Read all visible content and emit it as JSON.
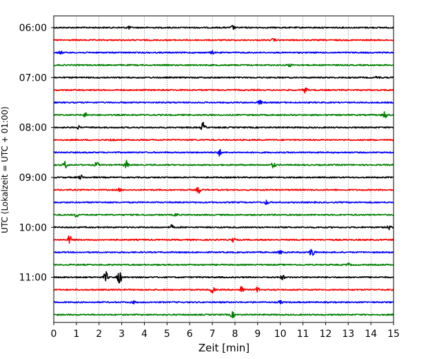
{
  "chart_data": {
    "type": "line",
    "title": "",
    "xlabel": "Zeit  [min]",
    "ylabel": "UTC (Lokalzeit = UTC + 01:00)",
    "xlim": [
      0,
      15
    ],
    "x_ticks": [
      "0",
      "1",
      "2",
      "3",
      "4",
      "5",
      "6",
      "7",
      "8",
      "9",
      "10",
      "11",
      "12",
      "13",
      "14",
      "15"
    ],
    "y_ticks": [
      "06:00",
      "07:00",
      "08:00",
      "09:00",
      "10:00",
      "11:00"
    ],
    "y_tick_rows": [
      0,
      4,
      8,
      12,
      16,
      20
    ],
    "grid_x": true,
    "trace_interval_minutes": 15,
    "colors_cycle": [
      "#000000",
      "#ff0000",
      "#0000ff",
      "#008000"
    ],
    "traces": [
      {
        "label": "06:00",
        "color": "#000000",
        "events": [
          {
            "t": 7.9,
            "amp": 3
          },
          {
            "t": 3.3,
            "amp": 2
          }
        ]
      },
      {
        "label": "06:15",
        "color": "#ff0000",
        "events": [
          {
            "t": 9.7,
            "amp": 2
          }
        ]
      },
      {
        "label": "06:30",
        "color": "#0000ff",
        "events": [
          {
            "t": 0.3,
            "amp": 2
          },
          {
            "t": 7.0,
            "amp": 2
          }
        ]
      },
      {
        "label": "06:45",
        "color": "#008000",
        "events": [
          {
            "t": 10.4,
            "amp": 2
          }
        ]
      },
      {
        "label": "07:00",
        "color": "#000000",
        "events": [
          {
            "t": 14.3,
            "amp": 2
          }
        ]
      },
      {
        "label": "07:15",
        "color": "#ff0000",
        "events": [
          {
            "t": 11.1,
            "amp": 4
          }
        ]
      },
      {
        "label": "07:30",
        "color": "#0000ff",
        "events": [
          {
            "t": 9.1,
            "amp": 3
          }
        ]
      },
      {
        "label": "07:45",
        "color": "#008000",
        "events": [
          {
            "t": 1.4,
            "amp": 3
          },
          {
            "t": 14.6,
            "amp": 6
          }
        ]
      },
      {
        "label": "08:00",
        "color": "#000000",
        "events": [
          {
            "t": 6.6,
            "amp": 7
          },
          {
            "t": 1.1,
            "amp": 2
          }
        ]
      },
      {
        "label": "08:15",
        "color": "#ff0000",
        "events": [
          {
            "t": 2.6,
            "amp": 2
          }
        ]
      },
      {
        "label": "08:30",
        "color": "#0000ff",
        "events": [
          {
            "t": 7.3,
            "amp": 5
          }
        ]
      },
      {
        "label": "08:45",
        "color": "#008000",
        "events": [
          {
            "t": 0.5,
            "amp": 5
          },
          {
            "t": 1.9,
            "amp": 4
          },
          {
            "t": 3.2,
            "amp": 6
          },
          {
            "t": 9.7,
            "amp": 4
          }
        ]
      },
      {
        "label": "09:00",
        "color": "#000000",
        "events": [
          {
            "t": 1.2,
            "amp": 3
          }
        ]
      },
      {
        "label": "09:15",
        "color": "#ff0000",
        "events": [
          {
            "t": 6.4,
            "amp": 5
          },
          {
            "t": 2.9,
            "amp": 2
          }
        ]
      },
      {
        "label": "09:30",
        "color": "#0000ff",
        "events": [
          {
            "t": 9.4,
            "amp": 3
          }
        ]
      },
      {
        "label": "09:45",
        "color": "#008000",
        "events": [
          {
            "t": 1.0,
            "amp": 3
          },
          {
            "t": 5.4,
            "amp": 2
          }
        ]
      },
      {
        "label": "10:00",
        "color": "#000000",
        "events": [
          {
            "t": 5.2,
            "amp": 3
          },
          {
            "t": 14.8,
            "amp": 3
          }
        ]
      },
      {
        "label": "10:15",
        "color": "#ff0000",
        "events": [
          {
            "t": 0.7,
            "amp": 6
          },
          {
            "t": 7.9,
            "amp": 4
          }
        ]
      },
      {
        "label": "10:30",
        "color": "#0000ff",
        "events": [
          {
            "t": 11.4,
            "amp": 9
          },
          {
            "t": 10.0,
            "amp": 2
          }
        ]
      },
      {
        "label": "10:45",
        "color": "#008000",
        "events": [
          {
            "t": 13.0,
            "amp": 2
          }
        ]
      },
      {
        "label": "11:00",
        "color": "#000000",
        "events": [
          {
            "t": 2.3,
            "amp": 8
          },
          {
            "t": 2.9,
            "amp": 10
          },
          {
            "t": 10.1,
            "amp": 3
          }
        ]
      },
      {
        "label": "11:15",
        "color": "#ff0000",
        "events": [
          {
            "t": 7.0,
            "amp": 5
          },
          {
            "t": 8.3,
            "amp": 6
          },
          {
            "t": 9.0,
            "amp": 4
          }
        ]
      },
      {
        "label": "11:30",
        "color": "#0000ff",
        "events": [
          {
            "t": 3.5,
            "amp": 2
          },
          {
            "t": 10.0,
            "amp": 2
          }
        ]
      },
      {
        "label": "11:45",
        "color": "#008000",
        "events": [
          {
            "t": 7.9,
            "amp": 4
          }
        ]
      }
    ]
  }
}
